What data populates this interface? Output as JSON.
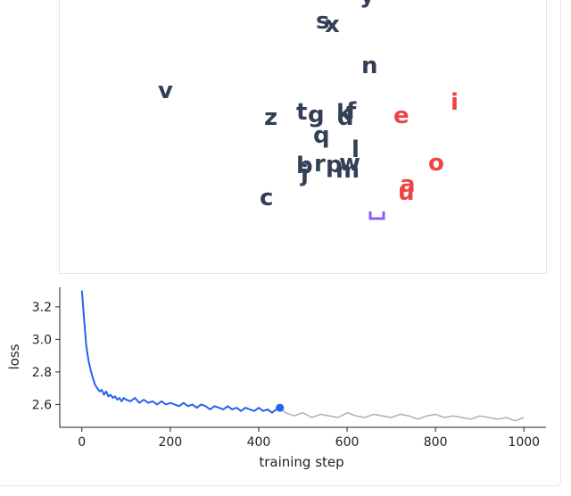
{
  "colors": {
    "token_default": "#333f55",
    "token_highlight": "#ef4444",
    "cursor": "#8b5cf6",
    "loss_trained": "#2563eb",
    "loss_future": "#a6b0c3",
    "axis": "#222222"
  },
  "embedding": {
    "tokens": [
      {
        "ch": "v",
        "highlight": false
      },
      {
        "ch": "s",
        "highlight": false
      },
      {
        "ch": "x",
        "highlight": false
      },
      {
        "ch": "y",
        "highlight": false
      },
      {
        "ch": "n",
        "highlight": false
      },
      {
        "ch": "i",
        "highlight": true
      },
      {
        "ch": "e",
        "highlight": true
      },
      {
        "ch": "z",
        "highlight": false
      },
      {
        "ch": "t",
        "highlight": false
      },
      {
        "ch": "g",
        "highlight": false
      },
      {
        "ch": "k",
        "highlight": false
      },
      {
        "ch": "f",
        "highlight": false
      },
      {
        "ch": "d",
        "highlight": false
      },
      {
        "ch": "q",
        "highlight": false
      },
      {
        "ch": "l",
        "highlight": false
      },
      {
        "ch": "o",
        "highlight": true
      },
      {
        "ch": "b",
        "highlight": false
      },
      {
        "ch": "r",
        "highlight": false
      },
      {
        "ch": "j",
        "highlight": false
      },
      {
        "ch": "p",
        "highlight": false
      },
      {
        "ch": "w",
        "highlight": false
      },
      {
        "ch": "m",
        "highlight": false
      },
      {
        "ch": "c",
        "highlight": false
      },
      {
        "ch": "a",
        "highlight": true
      },
      {
        "ch": "u",
        "highlight": true
      }
    ],
    "cursor_icon": "cursor-bracket-icon"
  },
  "chart_data": {
    "type": "line",
    "title": "",
    "xlabel": "training step",
    "ylabel": "loss",
    "xlim": [
      -50,
      1050
    ],
    "ylim": [
      2.46,
      3.32
    ],
    "xticks": [
      0,
      200,
      400,
      600,
      800,
      1000
    ],
    "yticks": [
      2.6,
      2.8,
      3.0,
      3.2
    ],
    "xtick_labels": [
      "0",
      "200",
      "400",
      "600",
      "800",
      "1000"
    ],
    "ytick_labels": [
      "2.6",
      "2.8",
      "3.0",
      "3.2"
    ],
    "grid": false,
    "current_step": 448,
    "current_loss": 2.58,
    "series": [
      {
        "segment": "trained",
        "x": [
          0,
          5,
          10,
          15,
          20,
          25,
          30,
          35,
          40,
          45,
          50,
          55,
          60,
          65,
          70,
          75,
          80,
          85,
          90,
          95,
          100,
          110,
          120,
          130,
          140,
          150,
          160,
          170,
          180,
          190,
          200,
          210,
          220,
          230,
          240,
          250,
          260,
          270,
          280,
          290,
          300,
          310,
          320,
          330,
          340,
          350,
          360,
          370,
          380,
          390,
          400,
          410,
          420,
          430,
          440,
          448
        ],
        "y": [
          3.3,
          3.12,
          2.96,
          2.87,
          2.81,
          2.76,
          2.72,
          2.7,
          2.68,
          2.69,
          2.66,
          2.68,
          2.65,
          2.66,
          2.64,
          2.65,
          2.63,
          2.64,
          2.62,
          2.64,
          2.63,
          2.62,
          2.64,
          2.61,
          2.63,
          2.61,
          2.62,
          2.6,
          2.62,
          2.6,
          2.61,
          2.6,
          2.59,
          2.61,
          2.59,
          2.6,
          2.58,
          2.6,
          2.59,
          2.57,
          2.59,
          2.58,
          2.57,
          2.59,
          2.57,
          2.58,
          2.56,
          2.58,
          2.57,
          2.56,
          2.58,
          2.56,
          2.57,
          2.55,
          2.57,
          2.58
        ]
      },
      {
        "segment": "future",
        "x": [
          448,
          460,
          480,
          500,
          520,
          540,
          560,
          580,
          600,
          620,
          640,
          660,
          680,
          700,
          720,
          740,
          760,
          780,
          800,
          820,
          840,
          860,
          880,
          900,
          920,
          940,
          960,
          980,
          1000
        ],
        "y": [
          2.58,
          2.55,
          2.53,
          2.55,
          2.52,
          2.54,
          2.53,
          2.52,
          2.55,
          2.53,
          2.52,
          2.54,
          2.53,
          2.52,
          2.54,
          2.53,
          2.51,
          2.53,
          2.54,
          2.52,
          2.53,
          2.52,
          2.51,
          2.53,
          2.52,
          2.51,
          2.52,
          2.5,
          2.52
        ]
      }
    ]
  }
}
